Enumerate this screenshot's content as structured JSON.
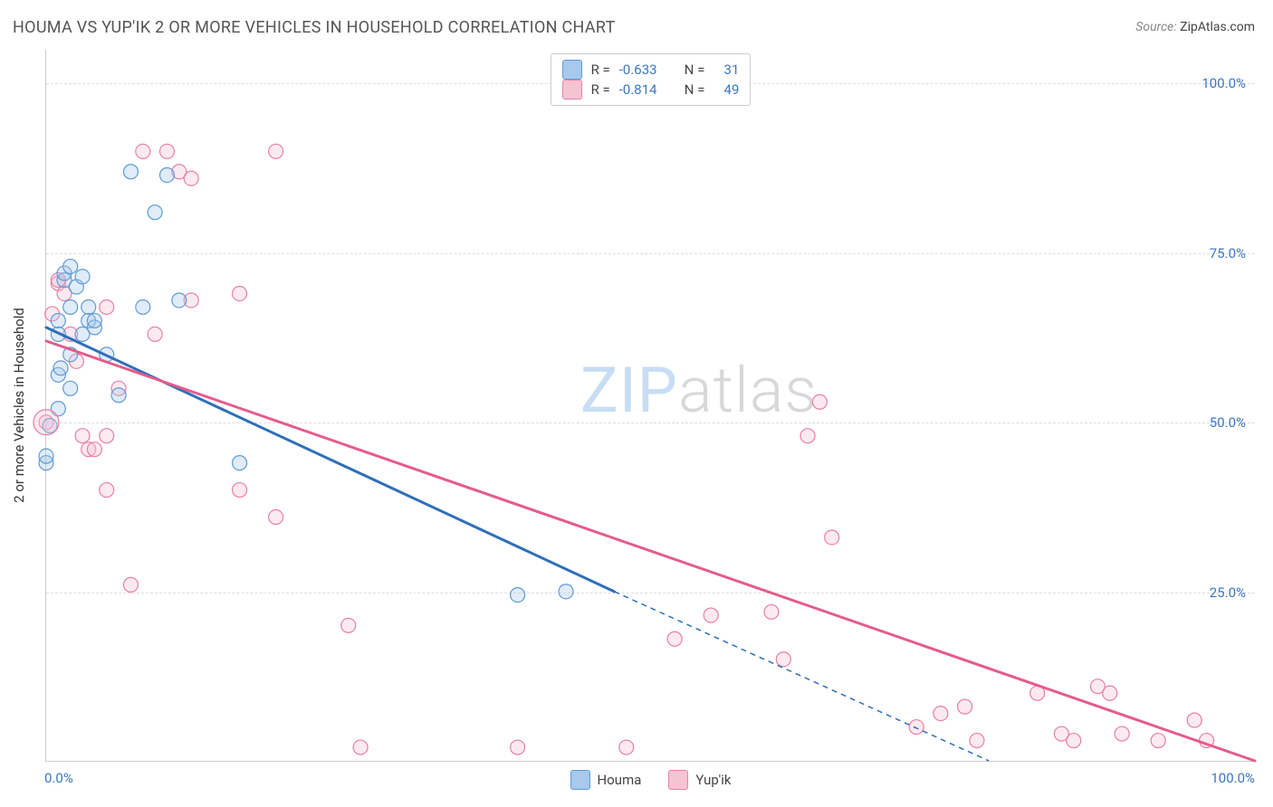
{
  "title": "HOUMA VS YUP'IK 2 OR MORE VEHICLES IN HOUSEHOLD CORRELATION CHART",
  "source_label": "Source:",
  "source_value": "ZipAtlas.com",
  "ylabel": "2 or more Vehicles in Household",
  "watermark_zip": "ZIP",
  "watermark_atlas": "atlas",
  "chart": {
    "type": "scatter",
    "xlim": [
      0,
      100
    ],
    "ylim": [
      0,
      105
    ],
    "yticks": [
      25,
      50,
      75,
      100
    ],
    "ytick_labels": [
      "25.0%",
      "50.0%",
      "75.0%",
      "100.0%"
    ],
    "xticks": [
      0,
      100
    ],
    "xtick_labels": [
      "0.0%",
      "100.0%"
    ],
    "background_color": "#ffffff",
    "grid_color": "#dddddd",
    "grid_dash": [
      4,
      4
    ],
    "axis_color": "#cccccc",
    "marker_radius": 8,
    "marker_fill_opacity": 0.35,
    "marker_stroke_width": 1.2,
    "trendline_width": 3,
    "series": [
      {
        "name": "Houma",
        "color_fill": "#a6c9ec",
        "color_stroke": "#5f9ad6",
        "line_color": "#2f6fb8",
        "R": -0.633,
        "N": 31,
        "points": [
          [
            0,
            44
          ],
          [
            0,
            45
          ],
          [
            0.3,
            49.5
          ],
          [
            1,
            52
          ],
          [
            1,
            57
          ],
          [
            1,
            63
          ],
          [
            1.2,
            58
          ],
          [
            1,
            65
          ],
          [
            1.5,
            71
          ],
          [
            1.5,
            72
          ],
          [
            2,
            67
          ],
          [
            2,
            73
          ],
          [
            2,
            60
          ],
          [
            2,
            55
          ],
          [
            2.5,
            70
          ],
          [
            3,
            63
          ],
          [
            3.5,
            67
          ],
          [
            3.5,
            65
          ],
          [
            3,
            71.5
          ],
          [
            4,
            64
          ],
          [
            4,
            65
          ],
          [
            5,
            60
          ],
          [
            6,
            54
          ],
          [
            7,
            87
          ],
          [
            8,
            67
          ],
          [
            9,
            81
          ],
          [
            10,
            86.5
          ],
          [
            11,
            68
          ],
          [
            16,
            44
          ],
          [
            39,
            24.5
          ],
          [
            43,
            25
          ]
        ],
        "trendline": {
          "x1": 0,
          "y1": 64,
          "x2": 47,
          "y2": 25
        },
        "trendline_dashed": {
          "x1": 47,
          "y1": 25,
          "x2": 78,
          "y2": 0
        }
      },
      {
        "name": "Yup'ik",
        "color_fill": "#f5c4d3",
        "color_stroke": "#e97fa4",
        "line_color": "#e45c8c",
        "R": -0.814,
        "N": 49,
        "points": [
          [
            0,
            50
          ],
          [
            0.5,
            66
          ],
          [
            1,
            70.5
          ],
          [
            1,
            71
          ],
          [
            1.5,
            69
          ],
          [
            2,
            63
          ],
          [
            2.5,
            59
          ],
          [
            3,
            48
          ],
          [
            3.5,
            46
          ],
          [
            4,
            46
          ],
          [
            5,
            48
          ],
          [
            5,
            40
          ],
          [
            5,
            67
          ],
          [
            6,
            55
          ],
          [
            7,
            26
          ],
          [
            8,
            90
          ],
          [
            9,
            63
          ],
          [
            10,
            90
          ],
          [
            11,
            87
          ],
          [
            12,
            68
          ],
          [
            12,
            86
          ],
          [
            16,
            40
          ],
          [
            16,
            69
          ],
          [
            19,
            90
          ],
          [
            19,
            36
          ],
          [
            25,
            20
          ],
          [
            26,
            2
          ],
          [
            39,
            2
          ],
          [
            48,
            2
          ],
          [
            52,
            18
          ],
          [
            55,
            21.5
          ],
          [
            60,
            22
          ],
          [
            61,
            15
          ],
          [
            63,
            48
          ],
          [
            64,
            53
          ],
          [
            65,
            33
          ],
          [
            72,
            5
          ],
          [
            74,
            7
          ],
          [
            76,
            8
          ],
          [
            77,
            3
          ],
          [
            82,
            10
          ],
          [
            84,
            4
          ],
          [
            85,
            3
          ],
          [
            87,
            11
          ],
          [
            88,
            10
          ],
          [
            89,
            4
          ],
          [
            92,
            3
          ],
          [
            95,
            6
          ],
          [
            96,
            3
          ]
        ],
        "trendline": {
          "x1": 0,
          "y1": 62,
          "x2": 100,
          "y2": 0
        }
      }
    ]
  },
  "legend_top": {
    "r_label": "R =",
    "n_label": "N =",
    "rows": [
      {
        "color_fill": "#a6c9ec",
        "color_stroke": "#5f9ad6",
        "r": "-0.633",
        "n": "31"
      },
      {
        "color_fill": "#f5c4d3",
        "color_stroke": "#e97fa4",
        "r": "-0.814",
        "n": "49"
      }
    ]
  },
  "legend_bottom": {
    "items": [
      {
        "label": "Houma",
        "color_fill": "#a6c9ec",
        "color_stroke": "#5f9ad6"
      },
      {
        "label": "Yup'ik",
        "color_fill": "#f5c4d3",
        "color_stroke": "#e97fa4"
      }
    ]
  }
}
